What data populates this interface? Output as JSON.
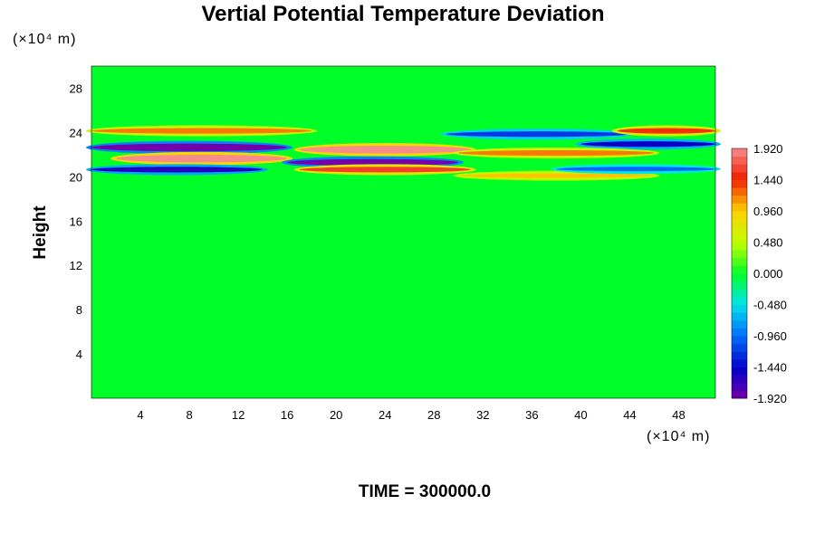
{
  "chart_data": {
    "type": "heatmap",
    "title": "Vertial Potential Temperature Deviation",
    "xlabel": "",
    "ylabel": "Height",
    "x_unit_label": "(×10⁴ m)",
    "y_unit_label": "(×10⁴ m)",
    "xlim": [
      0,
      51
    ],
    "ylim": [
      0,
      30
    ],
    "x_ticks": [
      4,
      8,
      12,
      16,
      20,
      24,
      28,
      32,
      36,
      40,
      44,
      48
    ],
    "y_ticks": [
      4,
      8,
      12,
      16,
      20,
      24,
      28
    ],
    "x_tick_labels": [
      "4",
      "8",
      "12",
      "16",
      "20",
      "24",
      "28",
      "32",
      "36",
      "40",
      "44",
      "48"
    ],
    "y_tick_labels": [
      "4",
      "8",
      "12",
      "16",
      "20",
      "24",
      "28"
    ],
    "grid": false,
    "colorbar": {
      "min": -1.92,
      "max": 1.92,
      "step": 0.12,
      "tick_values": [
        1.92,
        1.44,
        0.96,
        0.48,
        0.0,
        -0.48,
        -0.96,
        -1.44,
        -1.92
      ],
      "tick_labels": [
        "1.920",
        "1.440",
        "0.960",
        "0.480",
        "0.000",
        "-0.480",
        "-0.960",
        "-1.440",
        "-1.920"
      ]
    },
    "background_value": 0.0,
    "features": [
      {
        "x": [
          0,
          18
        ],
        "y": [
          23.9,
          24.4
        ],
        "value": 1.2
      },
      {
        "x": [
          0,
          16
        ],
        "y": [
          22.3,
          23.0
        ],
        "value": -1.92
      },
      {
        "x": [
          2,
          16
        ],
        "y": [
          21.3,
          22.0
        ],
        "value": 1.92
      },
      {
        "x": [
          0,
          14
        ],
        "y": [
          20.4,
          20.9
        ],
        "value": -1.6
      },
      {
        "x": [
          17,
          31
        ],
        "y": [
          22.1,
          22.8
        ],
        "value": 1.92
      },
      {
        "x": [
          16,
          30
        ],
        "y": [
          21.0,
          21.6
        ],
        "value": -1.92
      },
      {
        "x": [
          17,
          31
        ],
        "y": [
          20.4,
          20.9
        ],
        "value": 1.6
      },
      {
        "x": [
          29,
          44
        ],
        "y": [
          23.6,
          24.1
        ],
        "value": -1.2
      },
      {
        "x": [
          40,
          51
        ],
        "y": [
          22.7,
          23.2
        ],
        "value": -1.5
      },
      {
        "x": [
          43,
          51
        ],
        "y": [
          23.9,
          24.4
        ],
        "value": 1.4
      },
      {
        "x": [
          30,
          46
        ],
        "y": [
          21.9,
          22.4
        ],
        "value": 1.2
      },
      {
        "x": [
          30,
          46
        ],
        "y": [
          19.9,
          20.3
        ],
        "value": 1.0
      },
      {
        "x": [
          38,
          51
        ],
        "y": [
          20.5,
          20.9
        ],
        "value": -1.0
      }
    ]
  },
  "footer": {
    "time_label": "TIME = 300000.0"
  }
}
